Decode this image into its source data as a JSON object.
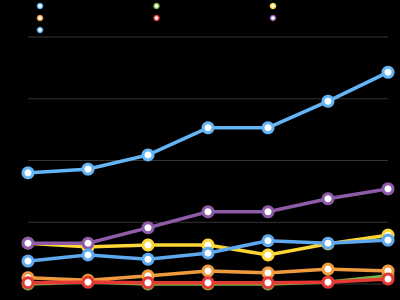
{
  "chart_data": {
    "type": "line",
    "categories": [
      null,
      null,
      null,
      null,
      null,
      null,
      null
    ],
    "series": [
      {
        "color": "#64b5f6",
        "values": [
          18,
          18.6,
          20.9,
          25.3,
          25.3,
          29.6,
          34.3
        ]
      },
      {
        "color": "#7cb342",
        "values": [
          0,
          0.3,
          0,
          0,
          0,
          0.3,
          1.3
        ]
      },
      {
        "color": "#fdd835",
        "values": [
          6.6,
          6,
          6.3,
          6.3,
          4.7,
          6.5,
          7.9
        ]
      },
      {
        "color": "#f09a3e",
        "values": [
          1,
          0.6,
          1.3,
          2.1,
          1.8,
          2.4,
          2.1
        ]
      },
      {
        "color": "#e53935",
        "values": [
          0.2,
          0.3,
          0.2,
          0.2,
          0.2,
          0.3,
          0.8
        ]
      },
      {
        "color": "#8e5ba8",
        "values": [
          6.6,
          6.6,
          9.1,
          11.7,
          11.7,
          13.8,
          15.4
        ]
      },
      {
        "color": "#5ea8ef",
        "values": [
          3.7,
          4.7,
          4,
          5,
          7,
          6.6,
          7.1
        ]
      }
    ],
    "ylim": [
      -2.6,
      46
    ],
    "yticks": [
      0,
      10,
      20,
      30,
      40
    ],
    "grid": true
  }
}
